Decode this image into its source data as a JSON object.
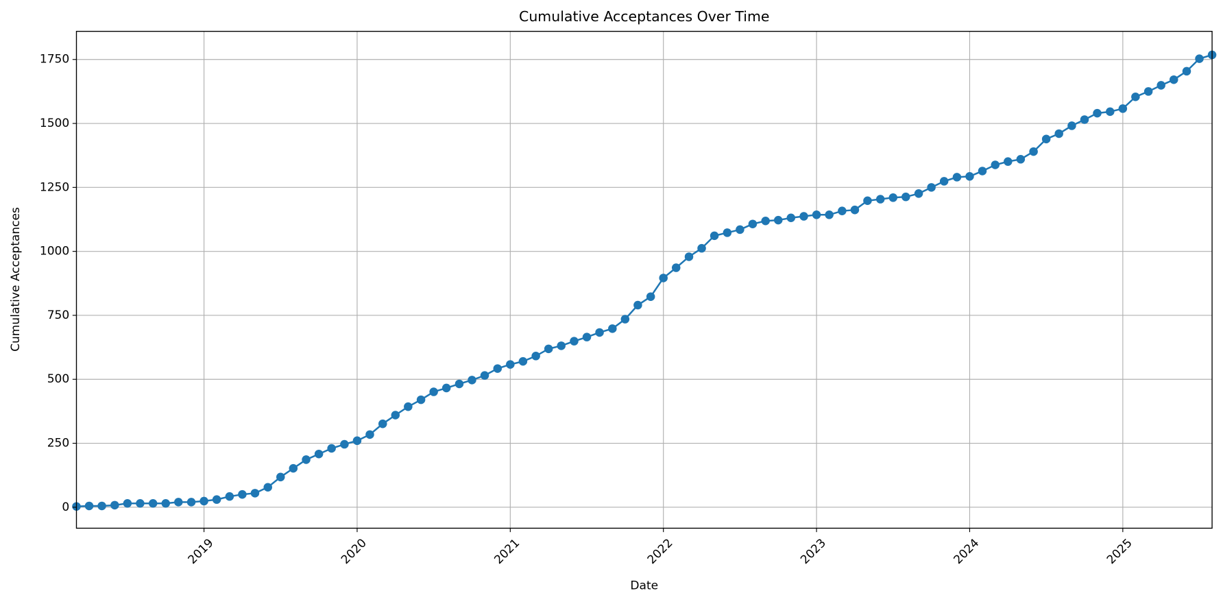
{
  "chart_data": {
    "type": "line",
    "title": "Cumulative Acceptances Over Time",
    "x_label": "Date",
    "y_label": "Cumulative Acceptances",
    "x": [
      2018.167,
      2018.25,
      2018.333,
      2018.417,
      2018.5,
      2018.583,
      2018.667,
      2018.75,
      2018.833,
      2018.917,
      2019,
      2019.083,
      2019.167,
      2019.25,
      2019.333,
      2019.417,
      2019.5,
      2019.583,
      2019.667,
      2019.75,
      2019.833,
      2019.917,
      2020,
      2020.083,
      2020.167,
      2020.25,
      2020.333,
      2020.417,
      2020.5,
      2020.583,
      2020.667,
      2020.75,
      2020.833,
      2020.917,
      2021,
      2021.083,
      2021.167,
      2021.25,
      2021.333,
      2021.417,
      2021.5,
      2021.583,
      2021.667,
      2021.75,
      2021.833,
      2021.917,
      2022,
      2022.083,
      2022.167,
      2022.25,
      2022.333,
      2022.417,
      2022.5,
      2022.583,
      2022.667,
      2022.75,
      2022.833,
      2022.917,
      2023,
      2023.083,
      2023.167,
      2023.25,
      2023.333,
      2023.417,
      2023.5,
      2023.583,
      2023.667,
      2023.75,
      2023.833,
      2023.917,
      2024,
      2024.083,
      2024.167,
      2024.25,
      2024.333,
      2024.417,
      2024.5,
      2024.583,
      2024.667,
      2024.75,
      2024.833,
      2024.917,
      2025,
      2025.083,
      2025.167,
      2025.25,
      2025.333,
      2025.417,
      2025.5,
      2025.583
    ],
    "values": [
      3,
      5,
      5,
      8,
      15,
      15,
      15,
      15,
      20,
      20,
      24,
      30,
      42,
      50,
      55,
      78,
      118,
      152,
      186,
      208,
      230,
      246,
      260,
      284,
      326,
      360,
      393,
      420,
      451,
      466,
      482,
      497,
      515,
      542,
      558,
      570,
      591,
      619,
      631,
      649,
      665,
      683,
      698,
      735,
      790,
      823,
      896,
      936,
      979,
      1012,
      1061,
      1073,
      1085,
      1107,
      1119,
      1122,
      1131,
      1137,
      1143,
      1143,
      1158,
      1162,
      1198,
      1204,
      1210,
      1213,
      1226,
      1250,
      1274,
      1290,
      1293,
      1314,
      1338,
      1351,
      1360,
      1390,
      1439,
      1460,
      1491,
      1515,
      1540,
      1546,
      1558,
      1604,
      1625,
      1649,
      1671,
      1704,
      1753,
      1768
    ],
    "color": "#1f77b4",
    "marker": true,
    "grid": true,
    "xlim": [
      2018.167,
      2025.583
    ],
    "xticks": [
      2019,
      2020,
      2021,
      2022,
      2023,
      2024,
      2025
    ],
    "ylim": [
      -82,
      1860
    ],
    "yticks": [
      0,
      250,
      500,
      750,
      1000,
      1250,
      1500,
      1750
    ]
  }
}
